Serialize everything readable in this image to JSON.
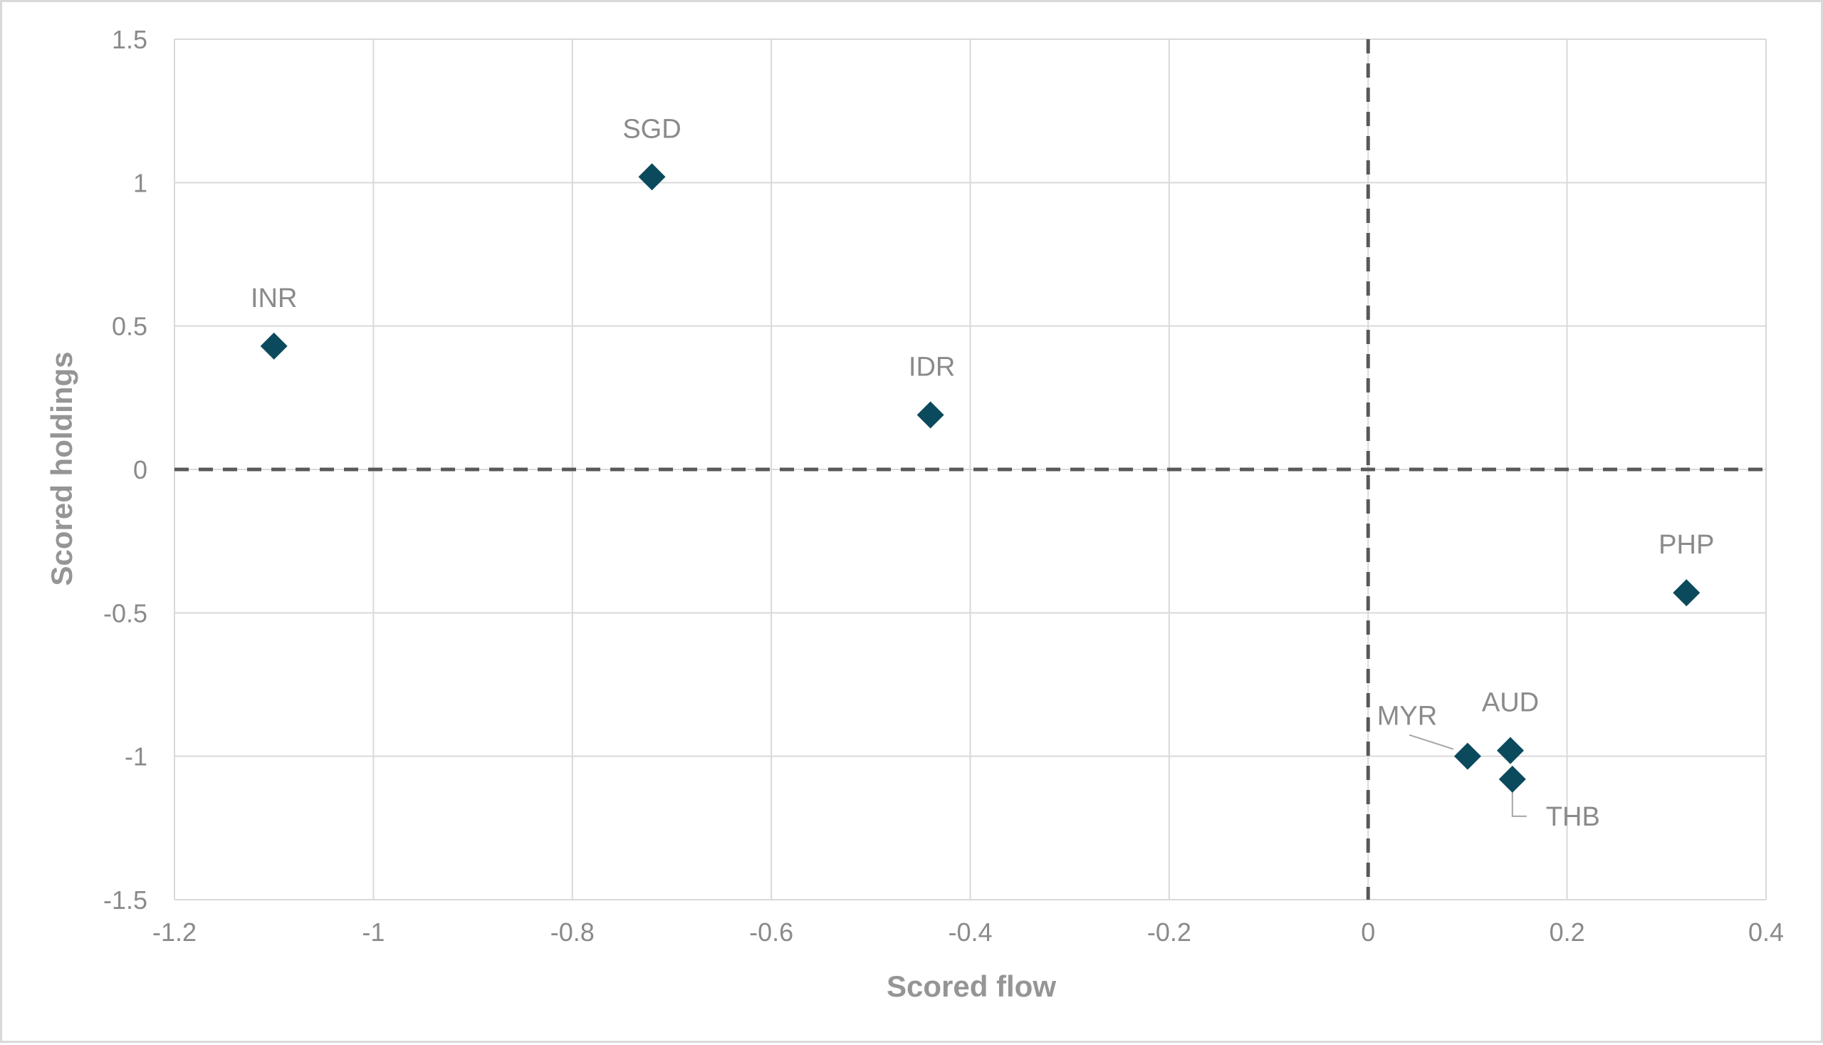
{
  "chart_data": {
    "type": "scatter",
    "title": "",
    "xlabel": "Scored flow",
    "ylabel": "Scored holdings",
    "xlim": [
      -1.2,
      0.4
    ],
    "ylim": [
      -1.5,
      1.5
    ],
    "x_ticks": [
      "-1.2",
      "-1",
      "-0.8",
      "-0.6",
      "-0.4",
      "-0.2",
      "0",
      "0.2",
      "0.4"
    ],
    "y_ticks": [
      "1.5",
      "1",
      "0.5",
      "0",
      "-0.5",
      "-1",
      "-1.5"
    ],
    "grid": true,
    "reference_lines": {
      "x": 0,
      "y": 0,
      "style": "dashed"
    },
    "marker": "diamond",
    "marker_color": "#0b4a5c",
    "points": [
      {
        "label": "INR",
        "x": -1.1,
        "y": 0.43
      },
      {
        "label": "SGD",
        "x": -0.72,
        "y": 1.02
      },
      {
        "label": "IDR",
        "x": -0.44,
        "y": 0.19
      },
      {
        "label": "PHP",
        "x": 0.32,
        "y": -0.43
      },
      {
        "label": "MYR",
        "x": 0.1,
        "y": -1.0
      },
      {
        "label": "AUD",
        "x": 0.143,
        "y": -0.98
      },
      {
        "label": "THB",
        "x": 0.145,
        "y": -1.08
      }
    ]
  }
}
